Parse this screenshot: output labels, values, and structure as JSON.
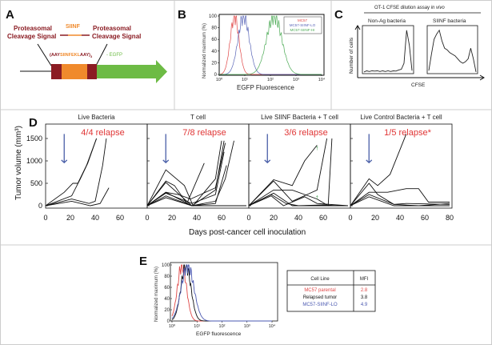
{
  "panels": {
    "a": "A",
    "b": "B",
    "c": "C",
    "d": "D",
    "e": "E"
  },
  "panel_a": {
    "left_signal_1": "Proteasomal",
    "left_signal_2": "Cleavage Signal",
    "siinf": "SIINF",
    "right_signal_1": "Proteasomal",
    "right_signal_2": "Cleavage Signal",
    "seq_open": "(AAY",
    "seq_mid": "SIINFEKL",
    "seq_close": "AAY)",
    "seq_sub": "3",
    "egfp": "- EGFP",
    "colors": {
      "signal": "#8b1c23",
      "siinf": "#f08a2c",
      "egfp": "#6dbb45"
    }
  },
  "chart_data": [
    {
      "id": "B",
      "type": "line",
      "xlabel": "EGFP Fluorescence",
      "ylabel": "Normalized maximum (%)",
      "xscale": "log",
      "xlim": [
        1,
        10000
      ],
      "ylim": [
        0,
        100
      ],
      "xticks": [
        "10⁰",
        "10¹",
        "10²",
        "10³",
        "10⁴"
      ],
      "yticks": [
        "0",
        "20",
        "40",
        "60",
        "80",
        "100"
      ],
      "legend_placement": "top-right",
      "series": [
        {
          "name": "MC57",
          "color": "#e04848",
          "peak_at": 4,
          "spread_decades": 0.17
        },
        {
          "name": "MC57-SIINF-LO",
          "color": "#5a66b8",
          "peak_at": 9,
          "spread_decades": 0.22
        },
        {
          "name": "MC57-SIINF-HI",
          "color": "#4caa55",
          "peak_at": 140,
          "spread_decades": 0.3
        }
      ]
    },
    {
      "id": "C",
      "type": "area",
      "title": "OT-1 CFSE dilution assay ",
      "title_italic": "in vivo",
      "xlabel": "CFSE",
      "ylabel": "Number of cells",
      "series": [
        {
          "name": "Non-Ag bacteria",
          "values": [
            2,
            3,
            3,
            3,
            4,
            3,
            3,
            3,
            3,
            3,
            3,
            3,
            4,
            5,
            8,
            20,
            95,
            60,
            5
          ]
        },
        {
          "name": "SIINF bacteria",
          "values": [
            5,
            40,
            75,
            85,
            95,
            70,
            55,
            50,
            45,
            40,
            38,
            30,
            25,
            20,
            25,
            30,
            55,
            30,
            2
          ]
        }
      ]
    },
    {
      "id": "D",
      "type": "line",
      "ylabel": "Tumor volume (mm³)",
      "xlabel": "Days post-cancer cell inoculation",
      "ylim": [
        0,
        1800
      ],
      "xlim": [
        0,
        80
      ],
      "yticks": [
        "0",
        "500",
        "1000",
        "1500"
      ],
      "treatment_day": 15,
      "subplots": [
        {
          "title": "Live Bacteria",
          "relapse": "4/4 relapse",
          "xticks": [
            "0",
            "20",
            "40",
            "60"
          ],
          "lines": [
            [
              [
                0,
                0
              ],
              [
                15,
                300
              ],
              [
                22,
                500
              ],
              [
                26,
                500
              ],
              [
                33,
                900
              ],
              [
                41,
                1500
              ]
            ],
            [
              [
                0,
                0
              ],
              [
                21,
                220
              ],
              [
                28,
                600
              ],
              [
                34,
                950
              ],
              [
                41,
                1500
              ]
            ],
            [
              [
                0,
                0
              ],
              [
                21,
                150
              ],
              [
                35,
                50
              ],
              [
                40,
                100
              ],
              [
                46,
                900
              ],
              [
                49,
                1500
              ]
            ],
            [
              [
                0,
                0
              ],
              [
                21,
                100
              ],
              [
                36,
                0
              ],
              [
                44,
                50
              ],
              [
                51,
                400
              ]
            ]
          ]
        },
        {
          "title": "T cell",
          "relapse": "7/8 relapse",
          "xticks": [
            "0",
            "20",
            "40",
            "60"
          ],
          "lines": [
            [
              [
                0,
                0
              ],
              [
                15,
                800
              ],
              [
                30,
                450
              ],
              [
                37,
                0
              ],
              [
                55,
                600
              ],
              [
                60,
                1450
              ]
            ],
            [
              [
                0,
                0
              ],
              [
                15,
                550
              ],
              [
                22,
                450
              ],
              [
                32,
                50
              ],
              [
                46,
                950
              ]
            ],
            [
              [
                0,
                0
              ],
              [
                15,
                520
              ],
              [
                36,
                0
              ],
              [
                55,
                350
              ],
              [
                62,
                1450
              ]
            ],
            [
              [
                0,
                0
              ],
              [
                15,
                300
              ],
              [
                25,
                250
              ],
              [
                35,
                150
              ],
              [
                55,
                400
              ],
              [
                63,
                1400
              ]
            ],
            [
              [
                0,
                0
              ],
              [
                15,
                280
              ],
              [
                36,
                50
              ],
              [
                55,
                250
              ],
              [
                62,
                1200
              ]
            ],
            [
              [
                0,
                0
              ],
              [
                15,
                220
              ],
              [
                36,
                0
              ],
              [
                55,
                100
              ],
              [
                63,
                600
              ],
              [
                70,
                1450
              ]
            ],
            [
              [
                0,
                0
              ],
              [
                15,
                180
              ],
              [
                36,
                0
              ],
              [
                55,
                50
              ],
              [
                64,
                900
              ]
            ],
            [
              [
                0,
                0
              ],
              [
                15,
                300
              ],
              [
                36,
                0
              ],
              [
                80,
                0
              ]
            ]
          ]
        },
        {
          "title": "Live SIINF Bacteria + T cell",
          "relapse": "3/6 relapse",
          "xticks": [
            "0",
            "20",
            "40",
            "60"
          ],
          "markers": [
            [
              55,
              1250
            ],
            [
              55,
              150
            ]
          ],
          "lines": [
            [
              [
                0,
                0
              ],
              [
                20,
                580
              ],
              [
                35,
                450
              ],
              [
                45,
                1000
              ],
              [
                55,
                1350
              ]
            ],
            [
              [
                0,
                0
              ],
              [
                20,
                550
              ],
              [
                35,
                100
              ],
              [
                55,
                350
              ],
              [
                63,
                1500
              ]
            ],
            [
              [
                0,
                0
              ],
              [
                20,
                350
              ],
              [
                35,
                350
              ],
              [
                55,
                150
              ],
              [
                64,
                0
              ],
              [
                67,
                1500
              ]
            ],
            [
              [
                0,
                0
              ],
              [
                20,
                280
              ],
              [
                35,
                0
              ],
              [
                80,
                0
              ]
            ],
            [
              [
                0,
                0
              ],
              [
                18,
                250
              ],
              [
                30,
                50
              ],
              [
                40,
                0
              ],
              [
                60,
                20
              ],
              [
                72,
                0
              ]
            ],
            [
              [
                0,
                0
              ],
              [
                18,
                220
              ],
              [
                28,
                0
              ],
              [
                45,
                200
              ],
              [
                55,
                50
              ],
              [
                80,
                0
              ]
            ]
          ]
        },
        {
          "title": "Live Control Bacteria + T cell",
          "relapse": "1/5 relapse*",
          "xticks": [
            "0",
            "20",
            "40",
            "60",
            "80"
          ],
          "lines": [
            [
              [
                0,
                0
              ],
              [
                15,
                600
              ],
              [
                22,
                450
              ],
              [
                32,
                700
              ],
              [
                45,
                1600
              ]
            ],
            [
              [
                0,
                0
              ],
              [
                15,
                500
              ],
              [
                22,
                250
              ],
              [
                35,
                30
              ],
              [
                55,
                0
              ],
              [
                80,
                50
              ]
            ],
            [
              [
                0,
                0
              ],
              [
                15,
                300
              ],
              [
                30,
                300
              ],
              [
                45,
                380
              ],
              [
                55,
                380
              ],
              [
                63,
                80
              ],
              [
                80,
                80
              ]
            ],
            [
              [
                0,
                0
              ],
              [
                15,
                250
              ],
              [
                35,
                30
              ],
              [
                45,
                50
              ],
              [
                80,
                30
              ]
            ],
            [
              [
                0,
                0
              ],
              [
                15,
                200
              ],
              [
                35,
                0
              ],
              [
                80,
                0
              ]
            ]
          ]
        }
      ]
    },
    {
      "id": "E",
      "type": "line",
      "xlabel": "EGFP fluorescence",
      "ylabel": "Normalized maximum (%)",
      "xscale": "log",
      "xlim": [
        1,
        10000
      ],
      "ylim": [
        0,
        100
      ],
      "xticks": [
        "10⁰",
        "10¹",
        "10²",
        "10³",
        "10⁴"
      ],
      "yticks": [
        "0",
        "20",
        "40",
        "60",
        "80",
        "100"
      ],
      "series": [
        {
          "name": "MC57 parental",
          "color": "#e04848",
          "peak_at": 2.5,
          "spread_decades": 0.18,
          "mfi": "2.8"
        },
        {
          "name": "Relapsed tumor",
          "color": "#111111",
          "peak_at": 3.6,
          "spread_decades": 0.2,
          "mfi": "3.8"
        },
        {
          "name": "MC57-SIINF-LO",
          "color": "#4a58b0",
          "peak_at": 4.2,
          "spread_decades": 0.25,
          "mfi": "4.9"
        }
      ]
    }
  ],
  "table_e": {
    "col1": "Cell Line",
    "col2": "MFI"
  }
}
